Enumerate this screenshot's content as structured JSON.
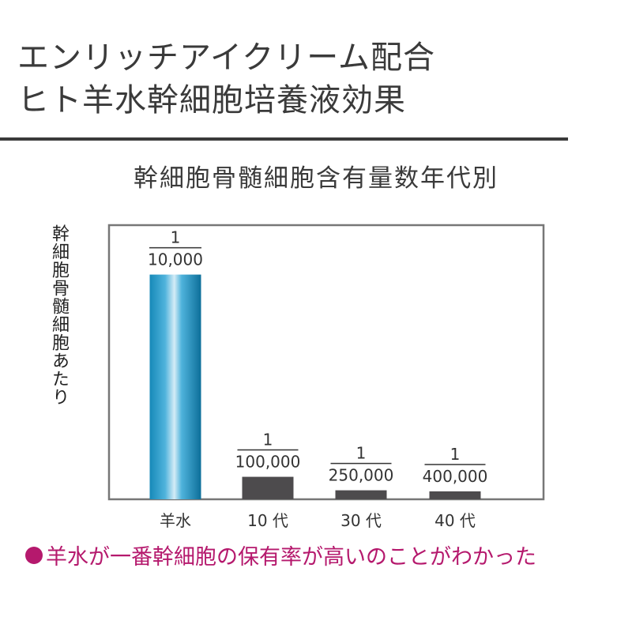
{
  "header": {
    "title_line1": "エンリッチアイクリーム配合",
    "title_line2": "ヒト羊水幹細胞培養液効果"
  },
  "footer": {
    "note": "羊水が一番幹細胞の保有率が高いのことがわかった",
    "note_color": "#b5196d"
  },
  "chart_data": {
    "type": "bar",
    "title": "幹細胞骨髄細胞含有量数年代別",
    "xlabel": "",
    "ylabel": "幹細胞骨髄細胞あたり",
    "categories": [
      "羊水",
      "10 代",
      "30 代",
      "40 代"
    ],
    "values": [
      0.0001,
      1e-05,
      4e-06,
      2.5e-06
    ],
    "data_labels": [
      {
        "numerator": "1",
        "denominator": "10,000"
      },
      {
        "numerator": "1",
        "denominator": "100,000"
      },
      {
        "numerator": "1",
        "denominator": "250,000"
      },
      {
        "numerator": "1",
        "denominator": "400,000"
      }
    ],
    "colors": [
      "#2a9dc6",
      "#4d4b4d",
      "#4d4b4d",
      "#4d4b4d"
    ],
    "ylim": [
      0,
      0.000122
    ],
    "grid": false,
    "legend": "none"
  }
}
